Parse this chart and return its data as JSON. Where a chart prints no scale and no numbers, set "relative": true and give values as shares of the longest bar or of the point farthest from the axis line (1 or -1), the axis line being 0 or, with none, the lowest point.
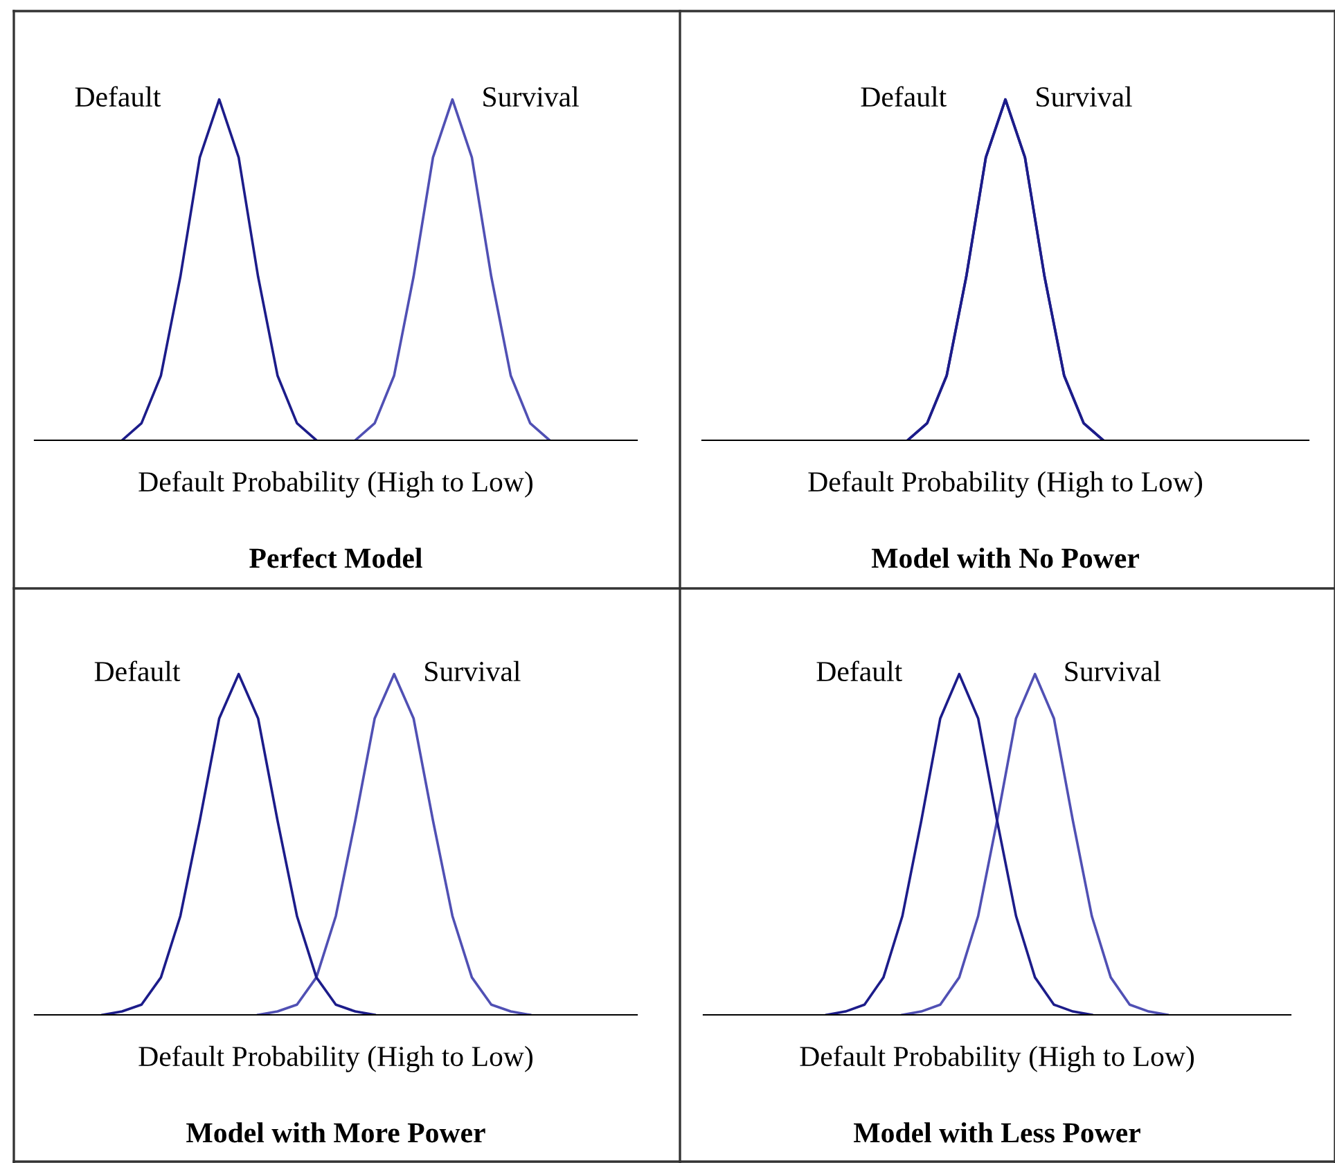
{
  "chart_data": [
    {
      "type": "line",
      "title": "Perfect Model",
      "xlabel": "Default Probability (High to Low)",
      "relative": true,
      "tick_labels": false,
      "categories": [
        null,
        null,
        null,
        null,
        null,
        null,
        null,
        null,
        null,
        null,
        null,
        null,
        null,
        null,
        null,
        null,
        null,
        null,
        null,
        null,
        null,
        null,
        null,
        null,
        null,
        null,
        null,
        null,
        null,
        null,
        null
      ],
      "series": [
        {
          "name": "Default",
          "color": "#1c1c8a",
          "values": [
            null,
            null,
            null,
            null,
            0,
            0.05,
            0.19,
            0.48,
            0.83,
            1,
            0.83,
            0.48,
            0.19,
            0.05,
            0,
            null,
            null,
            null,
            null,
            null,
            null,
            null,
            null,
            null,
            null,
            null,
            null,
            null,
            null,
            null,
            null
          ]
        },
        {
          "name": "Survival",
          "color": "#5050b4",
          "values": [
            null,
            null,
            null,
            null,
            null,
            null,
            null,
            null,
            null,
            null,
            null,
            null,
            null,
            null,
            null,
            null,
            0,
            0.05,
            0.19,
            0.48,
            0.83,
            1,
            0.83,
            0.48,
            0.19,
            0.05,
            0,
            null,
            null,
            null,
            null
          ]
        }
      ]
    },
    {
      "type": "line",
      "title": "Model with No Power",
      "xlabel": "Default Probability (High to Low)",
      "relative": true,
      "tick_labels": false,
      "categories": [
        null,
        null,
        null,
        null,
        null,
        null,
        null,
        null,
        null,
        null,
        null,
        null,
        null,
        null,
        null,
        null,
        null,
        null,
        null,
        null,
        null,
        null,
        null,
        null,
        null,
        null,
        null,
        null,
        null,
        null,
        null
      ],
      "series": [
        {
          "name": "Default",
          "color": "#1c1c8a",
          "values": [
            null,
            null,
            null,
            null,
            null,
            null,
            null,
            null,
            null,
            null,
            0,
            0.05,
            0.19,
            0.48,
            0.83,
            1,
            0.83,
            0.48,
            0.19,
            0.05,
            0,
            null,
            null,
            null,
            null,
            null,
            null,
            null,
            null,
            null,
            null
          ]
        },
        {
          "name": "Survival",
          "color": "#1c1c8a",
          "values": [
            null,
            null,
            null,
            null,
            null,
            null,
            null,
            null,
            null,
            null,
            0,
            0.05,
            0.19,
            0.48,
            0.83,
            1,
            0.83,
            0.48,
            0.19,
            0.05,
            0,
            null,
            null,
            null,
            null,
            null,
            null,
            null,
            null,
            null,
            null
          ]
        }
      ]
    },
    {
      "type": "line",
      "title": "Model with More Power",
      "xlabel": "Default Probability (High to Low)",
      "relative": true,
      "tick_labels": false,
      "categories": [
        null,
        null,
        null,
        null,
        null,
        null,
        null,
        null,
        null,
        null,
        null,
        null,
        null,
        null,
        null,
        null,
        null,
        null,
        null,
        null,
        null,
        null,
        null,
        null,
        null,
        null,
        null,
        null,
        null,
        null,
        null
      ],
      "series": [
        {
          "name": "Default",
          "color": "#1c1c8a",
          "values": [
            null,
            null,
            null,
            0,
            0.01,
            0.03,
            0.11,
            0.29,
            0.57,
            0.87,
            1,
            0.87,
            0.57,
            0.29,
            0.11,
            0.03,
            0.01,
            0,
            null,
            null,
            null,
            null,
            null,
            null,
            null,
            null,
            null,
            null,
            null,
            null,
            null
          ]
        },
        {
          "name": "Survival",
          "color": "#5050b4",
          "values": [
            null,
            null,
            null,
            null,
            null,
            null,
            null,
            null,
            null,
            null,
            null,
            0,
            0.01,
            0.03,
            0.11,
            0.29,
            0.57,
            0.87,
            1,
            0.87,
            0.57,
            0.29,
            0.11,
            0.03,
            0.01,
            0,
            null,
            null,
            null,
            null,
            null
          ]
        }
      ]
    },
    {
      "type": "line",
      "title": "Model with Less Power",
      "xlabel": "Default Probability (High to Low)",
      "relative": true,
      "tick_labels": false,
      "categories": [
        null,
        null,
        null,
        null,
        null,
        null,
        null,
        null,
        null,
        null,
        null,
        null,
        null,
        null,
        null,
        null,
        null,
        null,
        null,
        null,
        null,
        null,
        null,
        null,
        null,
        null,
        null,
        null,
        null,
        null,
        null
      ],
      "series": [
        {
          "name": "Default",
          "color": "#1c1c8a",
          "values": [
            null,
            null,
            null,
            null,
            null,
            null,
            0,
            0.01,
            0.03,
            0.11,
            0.29,
            0.57,
            0.87,
            1,
            0.87,
            0.57,
            0.29,
            0.11,
            0.03,
            0.01,
            0,
            null,
            null,
            null,
            null,
            null,
            null,
            null,
            null,
            null,
            null
          ]
        },
        {
          "name": "Survival",
          "color": "#5050b4",
          "values": [
            null,
            null,
            null,
            null,
            null,
            null,
            null,
            null,
            null,
            null,
            0,
            0.01,
            0.03,
            0.11,
            0.29,
            0.57,
            0.87,
            1,
            0.87,
            0.57,
            0.29,
            0.11,
            0.03,
            0.01,
            0,
            null,
            null,
            null,
            null,
            null,
            null
          ]
        }
      ]
    }
  ]
}
